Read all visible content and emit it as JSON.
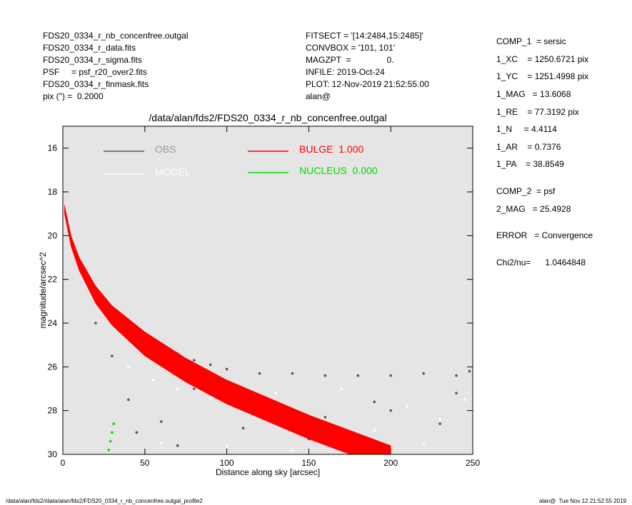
{
  "header": {
    "left": [
      "FDS20_0334_r_nb_concenfree.outgal",
      "FDS20_0334_r_data.fits",
      "FDS20_0334_r_sigma.fits",
      "PSF     = psf_r20_over2.fits",
      "FDS20_0334_r_finmask.fits",
      "pix (\") =  0.2000"
    ],
    "middle": [
      "FITSECT = '[14:2484,15:2485]'",
      "CONVBOX = '101, 101'",
      "MAGZPT  =               0.",
      "INFILE: 2019-Oct-24",
      "PLOT: 12-Nov-2019 21:52:55.00",
      "alan@"
    ],
    "right": [
      "COMP_1  = sersic",
      "1_XC    = 1250.6721 pix",
      "1_YC    = 1251.4998 pix",
      "1_MAG   = 13.6068",
      "1_RE    = 77.3192 pix",
      "1_N     = 4.4114",
      "1_AR    = 0.7376",
      "1_PA    = 38.8549",
      "COMP_2  = psf",
      "2_MAG   = 25.4928",
      "ERROR   = Convergence",
      "Chi2/nu=      1.0464848"
    ]
  },
  "chart_data": {
    "type": "scatter",
    "title": "/data/alan/fds2/FDS20_0334_r_nb_concenfree.outgal",
    "x_label": "Distance along sky [arcsec]",
    "y_label": "magnitude/arcsec^2",
    "xlim": [
      0,
      250
    ],
    "xticks": [
      0,
      50,
      100,
      150,
      200,
      250
    ],
    "ylim": [
      15,
      30
    ],
    "yticks": [
      16,
      18,
      20,
      22,
      24,
      26,
      28,
      30
    ],
    "y_reversed": true,
    "series": [
      {
        "name": "OBS",
        "color": "#555555",
        "x": [
          30,
          35,
          40,
          45,
          50,
          55,
          60,
          70,
          80,
          90,
          100,
          120,
          140,
          160,
          180,
          200,
          220,
          240,
          248,
          20,
          30,
          40,
          60,
          80,
          120,
          160,
          200,
          240,
          45,
          70,
          110,
          150,
          190,
          230
        ],
        "values": [
          23.6,
          23.9,
          24.1,
          24.4,
          24.6,
          24.9,
          25.1,
          25.4,
          25.7,
          25.9,
          26.1,
          26.3,
          26.3,
          26.4,
          26.4,
          26.4,
          26.3,
          26.4,
          26.2,
          24.0,
          25.5,
          27.5,
          28.5,
          27.0,
          27.5,
          28.3,
          28.0,
          27.2,
          29.0,
          29.6,
          28.8,
          29.3,
          27.6,
          28.6
        ]
      },
      {
        "name": "MODEL",
        "color": "#ffffff",
        "x": [
          40,
          55,
          70,
          90,
          110,
          130,
          150,
          170,
          190,
          210,
          230,
          245,
          60,
          100,
          140,
          180,
          220
        ],
        "values": [
          26.0,
          26.6,
          27.0,
          27.4,
          27.7,
          27.2,
          28.5,
          27.0,
          28.9,
          27.8,
          28.4,
          27.5,
          29.5,
          29.6,
          29.8,
          29.0,
          29.5
        ]
      },
      {
        "name": "BULGE  1.000",
        "color": "#ff0000",
        "band": true,
        "x": [
          1,
          5,
          10,
          20,
          30,
          50,
          75,
          100,
          125,
          150,
          175,
          200
        ],
        "values": [
          18.6,
          20.0,
          21.0,
          22.3,
          23.2,
          24.4,
          25.6,
          26.6,
          27.4,
          28.2,
          28.9,
          29.6
        ],
        "values_low": [
          19.0,
          20.5,
          21.6,
          23.1,
          24.1,
          25.5,
          26.7,
          27.7,
          28.5,
          29.3,
          30,
          30
        ]
      },
      {
        "name": "NUCLEUS  0.000",
        "color": "#00dd00",
        "x": [
          28,
          29,
          30,
          31
        ],
        "values": [
          29.8,
          29.4,
          29.0,
          28.6
        ]
      }
    ]
  },
  "footer": {
    "left": "/data/alan/fds2//data/alan/fds2/FDS20_0334_r_nb_concenfree.outgal_profile2",
    "right": "alan@  Tue Nov 12 21:52:55 2019"
  }
}
